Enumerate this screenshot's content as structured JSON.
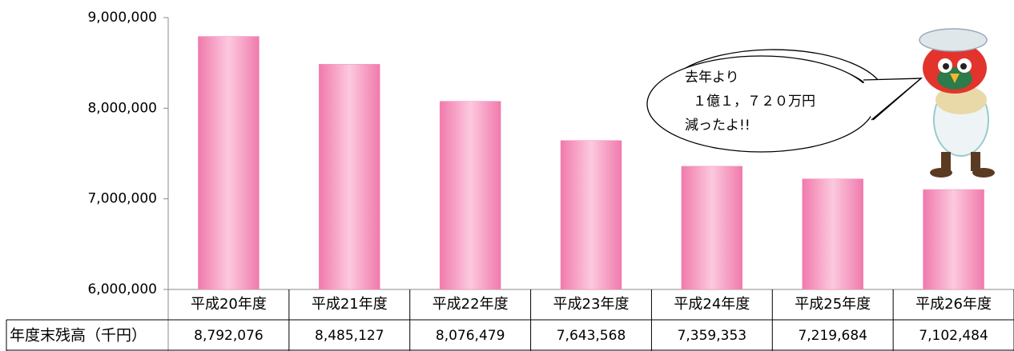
{
  "chart_data": {
    "type": "bar",
    "categories": [
      "平成20年度",
      "平成21年度",
      "平成22年度",
      "平成23年度",
      "平成24年度",
      "平成25年度",
      "平成26年度"
    ],
    "values": [
      8792076,
      8485127,
      8076479,
      7643568,
      7359353,
      7219684,
      7102484
    ],
    "value_labels": [
      "8,792,076",
      "8,485,127",
      "8,076,479",
      "7,643,568",
      "7,359,353",
      "7,219,684",
      "7,102,484"
    ],
    "row_label": "年度末残高（千円）",
    "color": "#f38cb8",
    "ylim": [
      6000000,
      9000000
    ],
    "yticks": [
      {
        "value": 6000000,
        "label": "6,000,000"
      },
      {
        "value": 7000000,
        "label": "7,000,000"
      },
      {
        "value": 8000000,
        "label": "8,000,000"
      },
      {
        "value": 9000000,
        "label": "9,000,000"
      }
    ],
    "annotation": [
      "去年より",
      "１億１，７２０万円",
      "減ったよ!!"
    ]
  }
}
